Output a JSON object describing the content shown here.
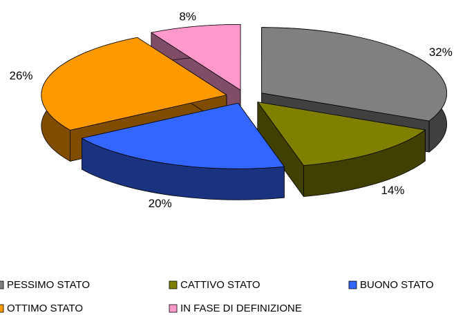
{
  "chart_data": {
    "type": "pie3d",
    "categories": [
      "PESSIMO STATO",
      "CATTIVO STATO",
      "BUONO STATO",
      "OTTIMO STATO",
      "IN FASE DI DEFINIZIONE"
    ],
    "values": [
      32,
      14,
      20,
      26,
      8
    ],
    "value_labels": [
      "32%",
      "14%",
      "20%",
      "26%",
      "8%"
    ],
    "colors": [
      "#808080",
      "#808000",
      "#3366ff",
      "#ff9900",
      "#ff99cc"
    ],
    "legend": "bottom"
  }
}
